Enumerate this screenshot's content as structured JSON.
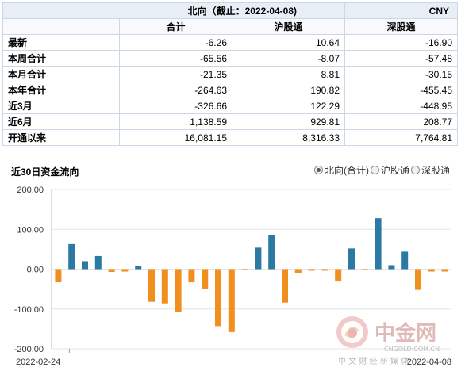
{
  "table": {
    "title": "北向（截止：2022-04-08)",
    "currency": "CNY",
    "columns": [
      "合计",
      "沪股通",
      "深股通"
    ],
    "rows": [
      {
        "label": "最新",
        "values": [
          "-6.26",
          "10.64",
          "-16.90"
        ]
      },
      {
        "label": "本周合计",
        "values": [
          "-65.56",
          "-8.07",
          "-57.48"
        ]
      },
      {
        "label": "本月合计",
        "values": [
          "-21.35",
          "8.81",
          "-30.15"
        ]
      },
      {
        "label": "本年合计",
        "values": [
          "-264.63",
          "190.82",
          "-455.45"
        ]
      },
      {
        "label": "近3月",
        "values": [
          "-326.66",
          "122.29",
          "-448.95"
        ]
      },
      {
        "label": "近6月",
        "values": [
          "1,138.59",
          "929.81",
          "208.77"
        ]
      },
      {
        "label": "开通以来",
        "values": [
          "16,081.15",
          "8,316.33",
          "7,764.81"
        ]
      }
    ]
  },
  "legend": {
    "options": [
      {
        "label": "北向(合计)",
        "selected": true
      },
      {
        "label": "沪股通",
        "selected": false
      },
      {
        "label": "深股通",
        "selected": false
      }
    ]
  },
  "chart_data": {
    "type": "bar",
    "title": "近30日资金流向",
    "ylim": [
      -200,
      200
    ],
    "yticks": [
      "200.00",
      "100.00",
      "0.00",
      "-100.00",
      "-200.00"
    ],
    "x_start_label": "2022-02-24",
    "x_end_label": "2022-04-08",
    "values": [
      -33,
      63,
      20,
      33,
      -7,
      -6,
      7,
      -82,
      -86,
      -108,
      -33,
      -50,
      -143,
      -158,
      -3,
      54,
      85,
      -84,
      -9,
      -4,
      -4,
      -31,
      52,
      -3,
      128,
      10,
      44,
      -52,
      -6,
      -6
    ],
    "positive_color": "#2a7aa3",
    "negative_color": "#f08e1e"
  },
  "watermark": {
    "brand": "中金网",
    "domain": "CNGOLD.COM.CN",
    "slogan": "中 文 财 经 新 媒 体"
  }
}
